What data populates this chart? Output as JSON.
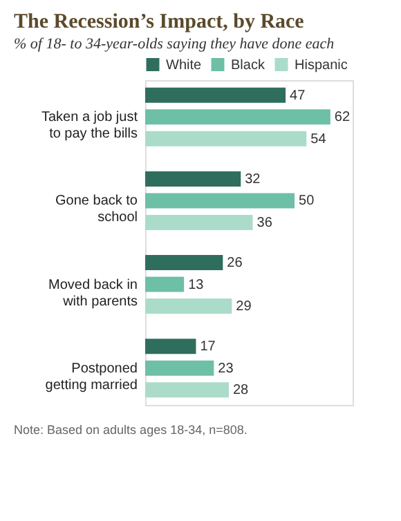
{
  "chart_data": {
    "type": "bar",
    "orientation": "horizontal",
    "title": "The Recession’s Impact, by Race",
    "subtitle": "% of 18- to 34-year-olds saying they have done each",
    "categories": [
      "Taken a job just to pay the bills",
      "Gone back to school",
      "Moved back in with parents",
      "Postponed getting married"
    ],
    "series": [
      {
        "name": "White",
        "color": "#2f6e5c",
        "values": [
          47,
          32,
          26,
          17
        ]
      },
      {
        "name": "Black",
        "color": "#6dbfa6",
        "values": [
          62,
          50,
          13,
          23
        ]
      },
      {
        "name": "Hispanic",
        "color": "#aadcc9",
        "values": [
          54,
          36,
          29,
          28
        ]
      }
    ],
    "data_labels": true,
    "legend": "top right",
    "grid": false,
    "annotations": [
      "Note: Based on adults ages 18-34, n=808."
    ]
  }
}
